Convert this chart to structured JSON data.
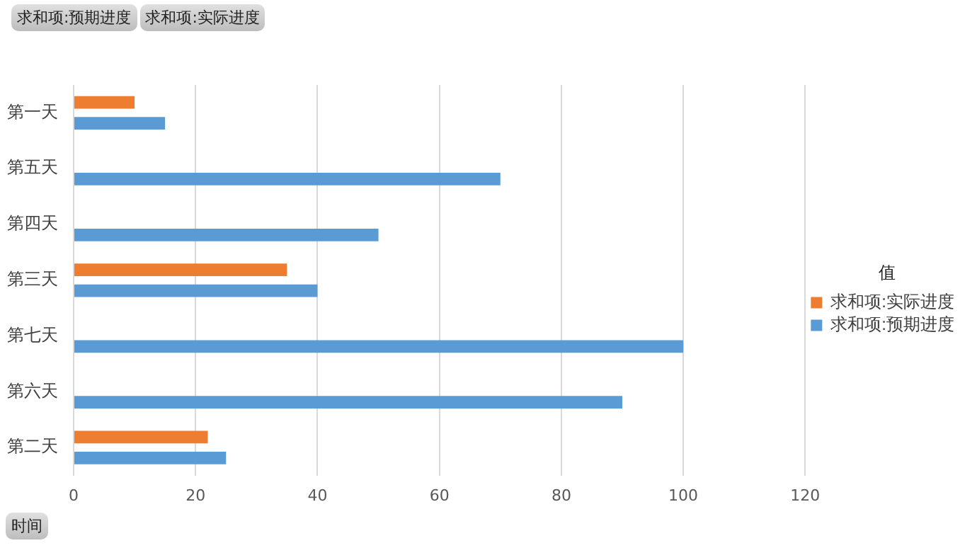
{
  "chart_data": {
    "type": "bar",
    "orientation": "horizontal",
    "categories": [
      "第一天",
      "第五天",
      "第四天",
      "第三天",
      "第七天",
      "第六天",
      "第二天"
    ],
    "series": [
      {
        "name": "求和项:实际进度",
        "color": "#ed7d31",
        "values": [
          10,
          null,
          null,
          35,
          null,
          null,
          22
        ]
      },
      {
        "name": "求和项:预期进度",
        "color": "#5b9bd5",
        "values": [
          15,
          70,
          50,
          40,
          100,
          90,
          25
        ]
      }
    ],
    "xlim": [
      0,
      120
    ],
    "xticks": [
      0,
      20,
      40,
      60,
      80,
      100,
      120
    ],
    "grid": "x",
    "legend": "right",
    "legend_title": "值",
    "ylabel": "时间",
    "annotations": [
      "求和项:预期进度",
      "求和项:实际进度"
    ]
  }
}
